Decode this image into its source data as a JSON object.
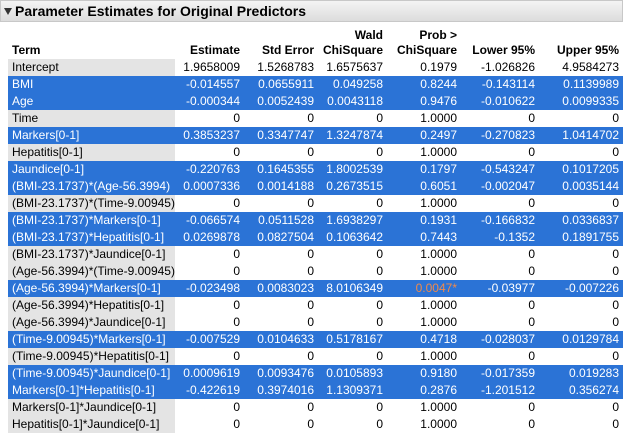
{
  "header": {
    "title": "Parameter Estimates for Original Predictors"
  },
  "table": {
    "columns": [
      [
        "Term"
      ],
      [
        "Estimate"
      ],
      [
        "Std Error"
      ],
      [
        "Wald",
        "ChiSquare"
      ],
      [
        "Prob >",
        "ChiSquare"
      ],
      [
        "Lower 95%"
      ],
      [
        "Upper 95%"
      ]
    ],
    "rows": [
      [
        "Intercept",
        "1.9658009",
        "1.5268783",
        "1.6575637",
        "0.1979",
        "-1.026826",
        "4.9584273"
      ],
      [
        "BMI",
        "-0.014557",
        "0.0655911",
        "0.049258",
        "0.8244",
        "-0.143114",
        "0.1139989"
      ],
      [
        "Age",
        "-0.000344",
        "0.0052439",
        "0.0043118",
        "0.9476",
        "-0.010622",
        "0.0099335"
      ],
      [
        "Time",
        "0",
        "0",
        "0",
        "1.0000",
        "0",
        "0"
      ],
      [
        "Markers[0-1]",
        "0.3853237",
        "0.3347747",
        "1.3247874",
        "0.2497",
        "-0.270823",
        "1.0414702"
      ],
      [
        "Hepatitis[0-1]",
        "0",
        "0",
        "0",
        "1.0000",
        "0",
        "0"
      ],
      [
        "Jaundice[0-1]",
        "-0.220763",
        "0.1645355",
        "1.8002539",
        "0.1797",
        "-0.543247",
        "0.1017205"
      ],
      [
        "(BMI-23.1737)*(Age-56.3994)",
        "0.0007336",
        "0.0014188",
        "0.2673515",
        "0.6051",
        "-0.002047",
        "0.0035144"
      ],
      [
        "(BMI-23.1737)*(Time-9.00945)",
        "0",
        "0",
        "0",
        "1.0000",
        "0",
        "0"
      ],
      [
        "(BMI-23.1737)*Markers[0-1]",
        "-0.066574",
        "0.0511528",
        "1.6938297",
        "0.1931",
        "-0.166832",
        "0.0336837"
      ],
      [
        "(BMI-23.1737)*Hepatitis[0-1]",
        "0.0269878",
        "0.0827504",
        "0.1063642",
        "0.7443",
        "-0.1352",
        "0.1891755"
      ],
      [
        "(BMI-23.1737)*Jaundice[0-1]",
        "0",
        "0",
        "0",
        "1.0000",
        "0",
        "0"
      ],
      [
        "(Age-56.3994)*(Time-9.00945)",
        "0",
        "0",
        "0",
        "1.0000",
        "0",
        "0"
      ],
      [
        "(Age-56.3994)*Markers[0-1]",
        "-0.023498",
        "0.0083023",
        "8.0106349",
        "0.0047*",
        "-0.03977",
        "-0.007226"
      ],
      [
        "(Age-56.3994)*Hepatitis[0-1]",
        "0",
        "0",
        "0",
        "1.0000",
        "0",
        "0"
      ],
      [
        "(Age-56.3994)*Jaundice[0-1]",
        "0",
        "0",
        "0",
        "1.0000",
        "0",
        "0"
      ],
      [
        "(Time-9.00945)*Markers[0-1]",
        "-0.007529",
        "0.0104633",
        "0.5178167",
        "0.4718",
        "-0.028037",
        "0.0129784"
      ],
      [
        "(Time-9.00945)*Hepatitis[0-1]",
        "0",
        "0",
        "0",
        "1.0000",
        "0",
        "0"
      ],
      [
        "(Time-9.00945)*Jaundice[0-1]",
        "0.0009619",
        "0.0093476",
        "0.0105893",
        "0.9180",
        "-0.017359",
        "0.019283"
      ],
      [
        "Markers[0-1]*Hepatitis[0-1]",
        "-0.422619",
        "0.3974016",
        "1.1309371",
        "0.2876",
        "-1.201512",
        "0.356274"
      ],
      [
        "Markers[0-1]*Jaundice[0-1]",
        "0",
        "0",
        "0",
        "1.0000",
        "0",
        "0"
      ],
      [
        "Hepatitis[0-1]*Jaundice[0-1]",
        "0",
        "0",
        "0",
        "1.0000",
        "0",
        "0"
      ]
    ],
    "selected": [
      false,
      true,
      true,
      false,
      true,
      false,
      true,
      true,
      false,
      true,
      true,
      false,
      false,
      true,
      false,
      false,
      true,
      false,
      true,
      true,
      false,
      false
    ],
    "alert_cell": [
      13,
      4
    ],
    "alert_color": "#f08a4b"
  }
}
